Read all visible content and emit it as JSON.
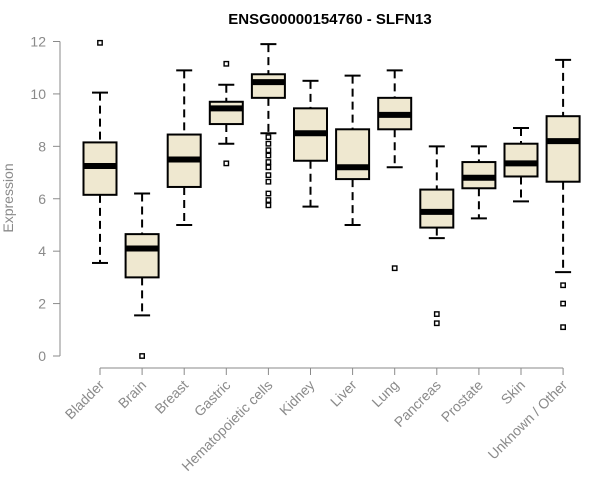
{
  "chart_data": {
    "type": "boxplot",
    "title": "ENSG00000154760 - SLFN13",
    "xlabel": "",
    "ylabel": "Expression",
    "ylim": [
      0,
      12
    ],
    "yticks": [
      0,
      2,
      4,
      6,
      8,
      10,
      12
    ],
    "box_fill": "#efe8d0",
    "box_stroke": "#000000",
    "axis_color": "#8a8a8a",
    "categories": [
      "Bladder",
      "Brain",
      "Breast",
      "Gastric",
      "Hematopoietic cells",
      "Kidney",
      "Liver",
      "Lung",
      "Pancreas",
      "Prostate",
      "Skin",
      "Unknown / Other"
    ],
    "boxes": [
      {
        "whisker_low": 3.55,
        "q1": 6.15,
        "median": 7.25,
        "q3": 8.15,
        "whisker_high": 10.05,
        "outliers": [
          11.95
        ]
      },
      {
        "whisker_low": 1.55,
        "q1": 3.0,
        "median": 4.1,
        "q3": 4.65,
        "whisker_high": 6.2,
        "outliers": [
          0.0
        ]
      },
      {
        "whisker_low": 5.0,
        "q1": 6.45,
        "median": 7.5,
        "q3": 8.45,
        "whisker_high": 10.9,
        "outliers": []
      },
      {
        "whisker_low": 8.1,
        "q1": 8.85,
        "median": 9.45,
        "q3": 9.7,
        "whisker_high": 10.35,
        "outliers": [
          11.15,
          7.35
        ]
      },
      {
        "whisker_low": 8.5,
        "q1": 9.85,
        "median": 10.45,
        "q3": 10.75,
        "whisker_high": 11.9,
        "outliers": [
          8.35,
          8.1,
          7.85,
          7.65,
          7.4,
          7.2,
          6.9,
          6.65,
          6.2,
          5.95,
          5.75
        ]
      },
      {
        "whisker_low": 5.7,
        "q1": 7.45,
        "median": 8.5,
        "q3": 9.45,
        "whisker_high": 10.5,
        "outliers": []
      },
      {
        "whisker_low": 5.0,
        "q1": 6.75,
        "median": 7.2,
        "q3": 8.65,
        "whisker_high": 10.7,
        "outliers": []
      },
      {
        "whisker_low": 7.2,
        "q1": 8.65,
        "median": 9.2,
        "q3": 9.85,
        "whisker_high": 10.9,
        "outliers": [
          3.35
        ]
      },
      {
        "whisker_low": 4.5,
        "q1": 4.9,
        "median": 5.5,
        "q3": 6.35,
        "whisker_high": 8.0,
        "outliers": [
          1.6,
          1.25
        ]
      },
      {
        "whisker_low": 5.25,
        "q1": 6.4,
        "median": 6.8,
        "q3": 7.4,
        "whisker_high": 8.0,
        "outliers": []
      },
      {
        "whisker_low": 5.9,
        "q1": 6.85,
        "median": 7.35,
        "q3": 8.1,
        "whisker_high": 8.7,
        "outliers": []
      },
      {
        "whisker_low": 3.2,
        "q1": 6.65,
        "median": 8.2,
        "q3": 9.15,
        "whisker_high": 11.3,
        "outliers": [
          2.7,
          2.0,
          1.1
        ]
      }
    ]
  }
}
